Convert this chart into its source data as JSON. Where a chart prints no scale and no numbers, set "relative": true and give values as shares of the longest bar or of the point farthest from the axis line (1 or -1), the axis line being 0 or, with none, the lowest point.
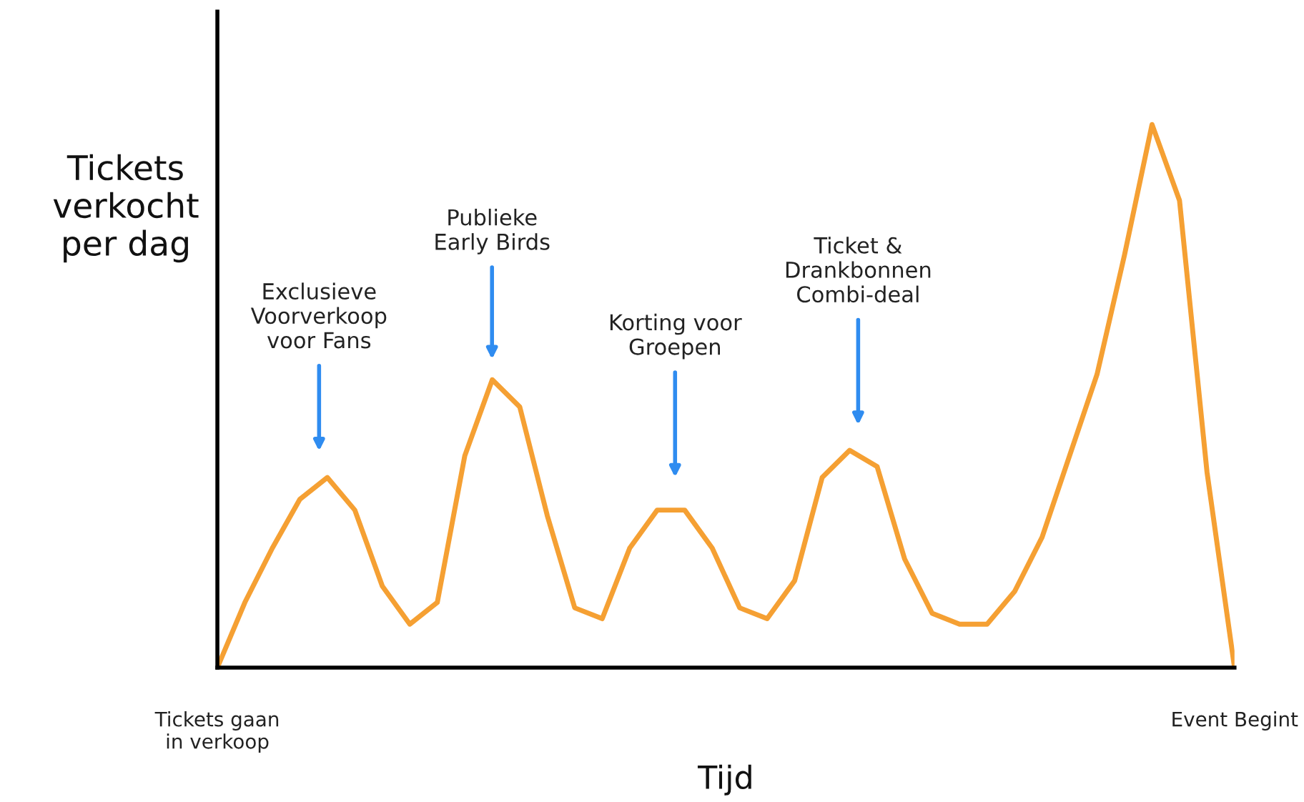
{
  "chart_data": {
    "type": "line",
    "relative": true,
    "xlabel": "Tijd",
    "ylabel": "Tickets\nverkocht\nper dag",
    "categories": [
      "Tickets gaan\nin verkoop",
      null,
      null,
      null,
      null,
      null,
      null,
      null,
      null,
      null,
      null,
      null,
      null,
      null,
      null,
      null,
      null,
      null,
      null,
      null,
      null,
      null,
      null,
      null,
      null,
      null,
      null,
      null,
      null,
      null,
      null,
      null,
      null,
      null,
      null,
      null,
      null,
      "Event Begint"
    ],
    "tick_labels": "x",
    "series": [
      {
        "color": "#f5a033",
        "values": [
          0,
          0.12,
          0.22,
          0.31,
          0.35,
          0.29,
          0.15,
          0.08,
          0.12,
          0.39,
          0.53,
          0.48,
          0.28,
          0.11,
          0.09,
          0.22,
          0.29,
          0.29,
          0.22,
          0.11,
          0.09,
          0.16,
          0.35,
          0.4,
          0.37,
          0.2,
          0.1,
          0.08,
          0.08,
          0.14,
          0.24,
          0.39,
          0.54,
          0.76,
          1,
          0.86,
          0.36,
          0
        ]
      }
    ],
    "marker": "none",
    "line_style": "solid",
    "annotations": [
      "Exclusieve\nVoorverkoop\nvoor Fans",
      "Publieke\nEarly Birds",
      "Korting voor\nGroepen",
      "Ticket &\nDrankbonnen\nCombi-deal"
    ]
  }
}
